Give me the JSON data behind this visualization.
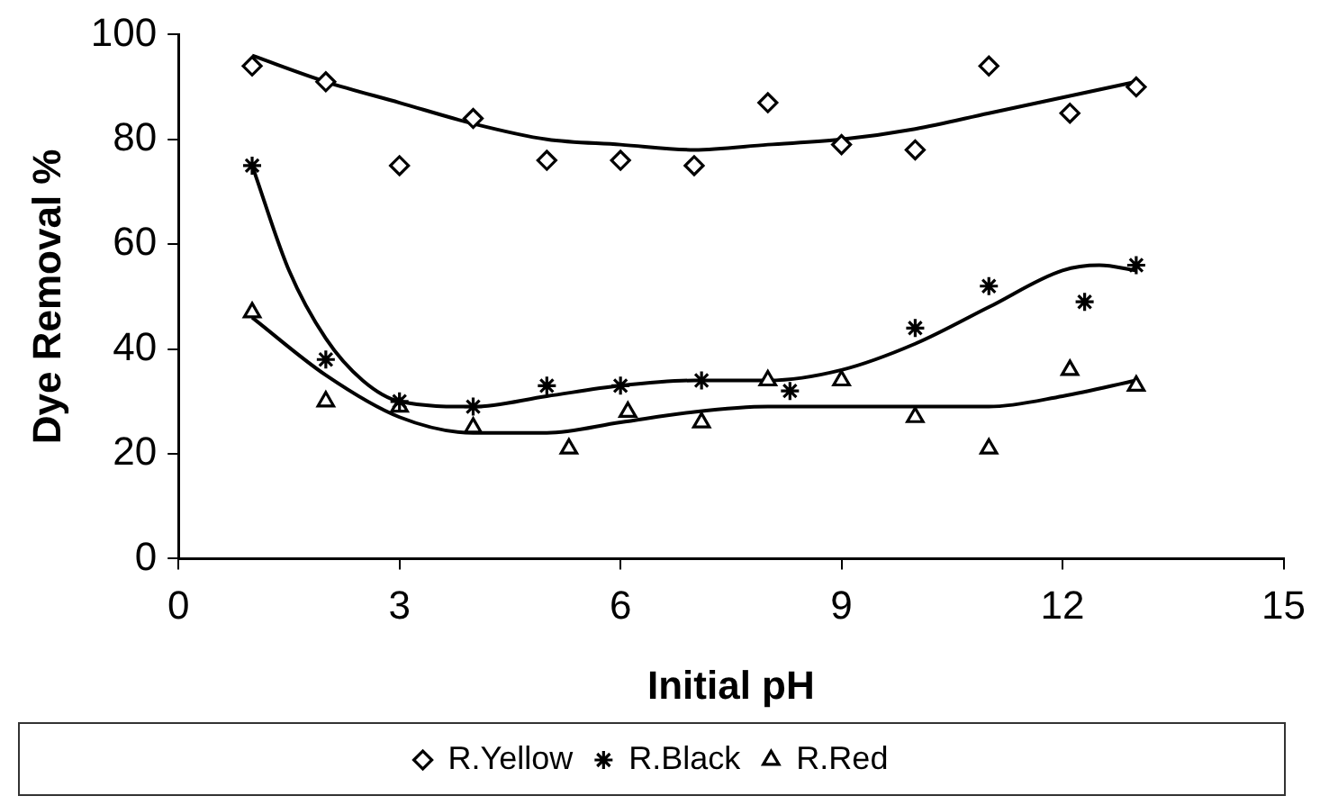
{
  "chart_data": {
    "type": "scatter",
    "xlabel": "Initial pH",
    "ylabel": "Dye Removal %",
    "xlim": [
      0,
      15
    ],
    "xticks": [
      0,
      3,
      6,
      9,
      12,
      15
    ],
    "ylim": [
      0,
      100
    ],
    "yticks": [
      0,
      20,
      40,
      60,
      80,
      100
    ],
    "grid": false,
    "legend": "bottom",
    "series": [
      {
        "name": "R.Yellow",
        "color": "#000000",
        "marker": "diamond",
        "x": [
          1,
          2,
          3,
          4,
          5,
          6,
          7,
          8,
          9,
          10,
          11,
          12.1,
          13
        ],
        "values": [
          94,
          91,
          75,
          84,
          76,
          76,
          75,
          87,
          79,
          78,
          94,
          85,
          90
        ]
      },
      {
        "name": "R.Black",
        "color": "#000000",
        "marker": "cross",
        "x": [
          1,
          2,
          3,
          4,
          5,
          6,
          7.1,
          8.3,
          10,
          11,
          12.3,
          13
        ],
        "values": [
          75,
          38,
          30,
          29,
          33,
          33,
          34,
          32,
          44,
          52,
          49,
          56
        ]
      },
      {
        "name": "R.Red",
        "color": "#000000",
        "marker": "triangle",
        "x": [
          1,
          2,
          3,
          4,
          5.3,
          6.1,
          7.1,
          8,
          9,
          10,
          11,
          12.1,
          13
        ],
        "values": [
          47,
          30,
          29,
          25,
          21,
          28,
          26,
          34,
          34,
          27,
          21,
          36,
          33
        ]
      },
      {
        "type": "line",
        "color": "#000000",
        "marker": "none",
        "x": [
          1,
          2,
          3,
          4,
          5,
          6,
          7,
          8,
          9,
          10,
          11,
          12,
          13
        ],
        "values": [
          96,
          91,
          87,
          83,
          80,
          79,
          78,
          79,
          80,
          82,
          85,
          88,
          91
        ]
      },
      {
        "type": "line",
        "color": "#000000",
        "marker": "none",
        "x": [
          1,
          1.5,
          2,
          2.5,
          3,
          4,
          5,
          6,
          7,
          8,
          9,
          10,
          11,
          12,
          12.5,
          13
        ],
        "values": [
          75,
          55,
          42,
          34,
          30,
          29,
          31,
          33,
          34,
          34,
          36,
          41,
          48,
          55,
          56,
          55
        ]
      },
      {
        "type": "line",
        "color": "#000000",
        "marker": "none",
        "x": [
          1,
          2,
          3,
          4,
          5,
          6,
          7,
          8,
          9,
          10,
          11,
          12,
          13
        ],
        "values": [
          46,
          35,
          27,
          24,
          24,
          26,
          28,
          29,
          29,
          29,
          29,
          31,
          34
        ]
      }
    ]
  }
}
